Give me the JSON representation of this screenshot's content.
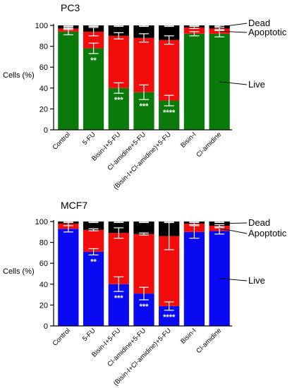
{
  "colors": {
    "live_pc3": "#0a7a0a",
    "live_mcf7": "#0a0af2",
    "apoptotic": "#f20d0d",
    "dead": "#000000",
    "background": "#ffffff"
  },
  "chart_data": [
    {
      "type": "bar",
      "stacked": true,
      "title": "PC3",
      "ylabel": "Cells (%)",
      "ylim": [
        0,
        100
      ],
      "yticks": [
        0,
        20,
        40,
        60,
        80,
        100
      ],
      "categories": [
        "Control",
        "5-FU",
        "Bisin-I+5-FU",
        "Cl-amidine+5-FU",
        "(Bisin-I+Cl-amidine)+5-FU",
        "Bisin-I",
        "Cl-amidine"
      ],
      "series": [
        {
          "name": "Live",
          "values": [
            94,
            78,
            40,
            36,
            28,
            92,
            92
          ],
          "error": [
            3,
            5,
            5,
            7,
            5,
            2,
            3
          ],
          "significance": [
            "",
            "**",
            "***",
            "***",
            "****",
            "",
            ""
          ]
        },
        {
          "name": "Apoptotic",
          "values": [
            3,
            16,
            50,
            52,
            58,
            6,
            5
          ],
          "error": [
            1,
            4,
            3,
            4,
            4,
            1,
            1
          ]
        },
        {
          "name": "Dead",
          "values": [
            3,
            6,
            10,
            12,
            14,
            2,
            3
          ],
          "error": [
            1,
            1,
            1,
            1,
            1,
            1,
            1
          ]
        }
      ]
    },
    {
      "type": "bar",
      "stacked": true,
      "title": "MCF7",
      "ylabel": "Cells (%)",
      "ylim": [
        0,
        100
      ],
      "yticks": [
        0,
        20,
        40,
        60,
        80,
        100
      ],
      "categories": [
        "Control",
        "5-FU",
        "Bisin-I+5-FU",
        "Cl-amidine+5-FU",
        "(Bisin-I+Cl-amidine)+5-FU",
        "Bisin-I",
        "Cl-amidine"
      ],
      "series": [
        {
          "name": "Live",
          "values": [
            93,
            71,
            40,
            31,
            19,
            90,
            91
          ],
          "error": [
            3,
            3,
            7,
            6,
            4,
            6,
            3
          ],
          "significance": [
            "",
            "**",
            "***",
            "***",
            "****",
            "",
            ""
          ]
        },
        {
          "name": "Apoptotic",
          "values": [
            5,
            21,
            49,
            57,
            67,
            8,
            5
          ],
          "error": [
            2,
            1,
            5,
            1,
            13,
            1,
            1
          ]
        },
        {
          "name": "Dead",
          "values": [
            2,
            8,
            11,
            12,
            14,
            2,
            4
          ],
          "error": [
            1,
            1,
            1,
            1,
            1,
            1,
            1
          ]
        }
      ]
    }
  ]
}
